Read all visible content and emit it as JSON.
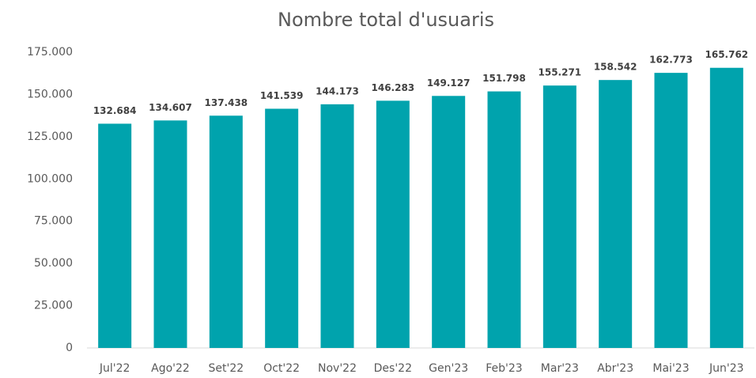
{
  "chart_data": {
    "type": "bar",
    "title": "Nombre total d'usuaris",
    "categories": [
      "Jul'22",
      "Ago'22",
      "Set'22",
      "Oct'22",
      "Nov'22",
      "Des'22",
      "Gen'23",
      "Feb'23",
      "Mar'23",
      "Abr'23",
      "Mai'23",
      "Jun'23"
    ],
    "values": [
      132684,
      134607,
      137438,
      141539,
      144173,
      146283,
      149127,
      151798,
      155271,
      158542,
      162773,
      165762
    ],
    "value_labels": [
      "132.684",
      "134.607",
      "137.438",
      "141.539",
      "144.173",
      "146.283",
      "149.127",
      "151.798",
      "155.271",
      "158.542",
      "162.773",
      "165.762"
    ],
    "color": "#00a3ad",
    "ylim": [
      0,
      175000
    ],
    "yticks": [
      0,
      {
        "value": 25000,
        "label": "25.000"
      },
      {
        "value": 50000,
        "label": "50.000"
      },
      {
        "value": 75000,
        "label": "75.000"
      },
      {
        "value": 100000,
        "label": "100.000"
      },
      {
        "value": 125000,
        "label": "125.000"
      },
      {
        "value": 150000,
        "label": "150.000"
      },
      {
        "value": 175000,
        "label": "175.000"
      }
    ],
    "grid": false
  }
}
